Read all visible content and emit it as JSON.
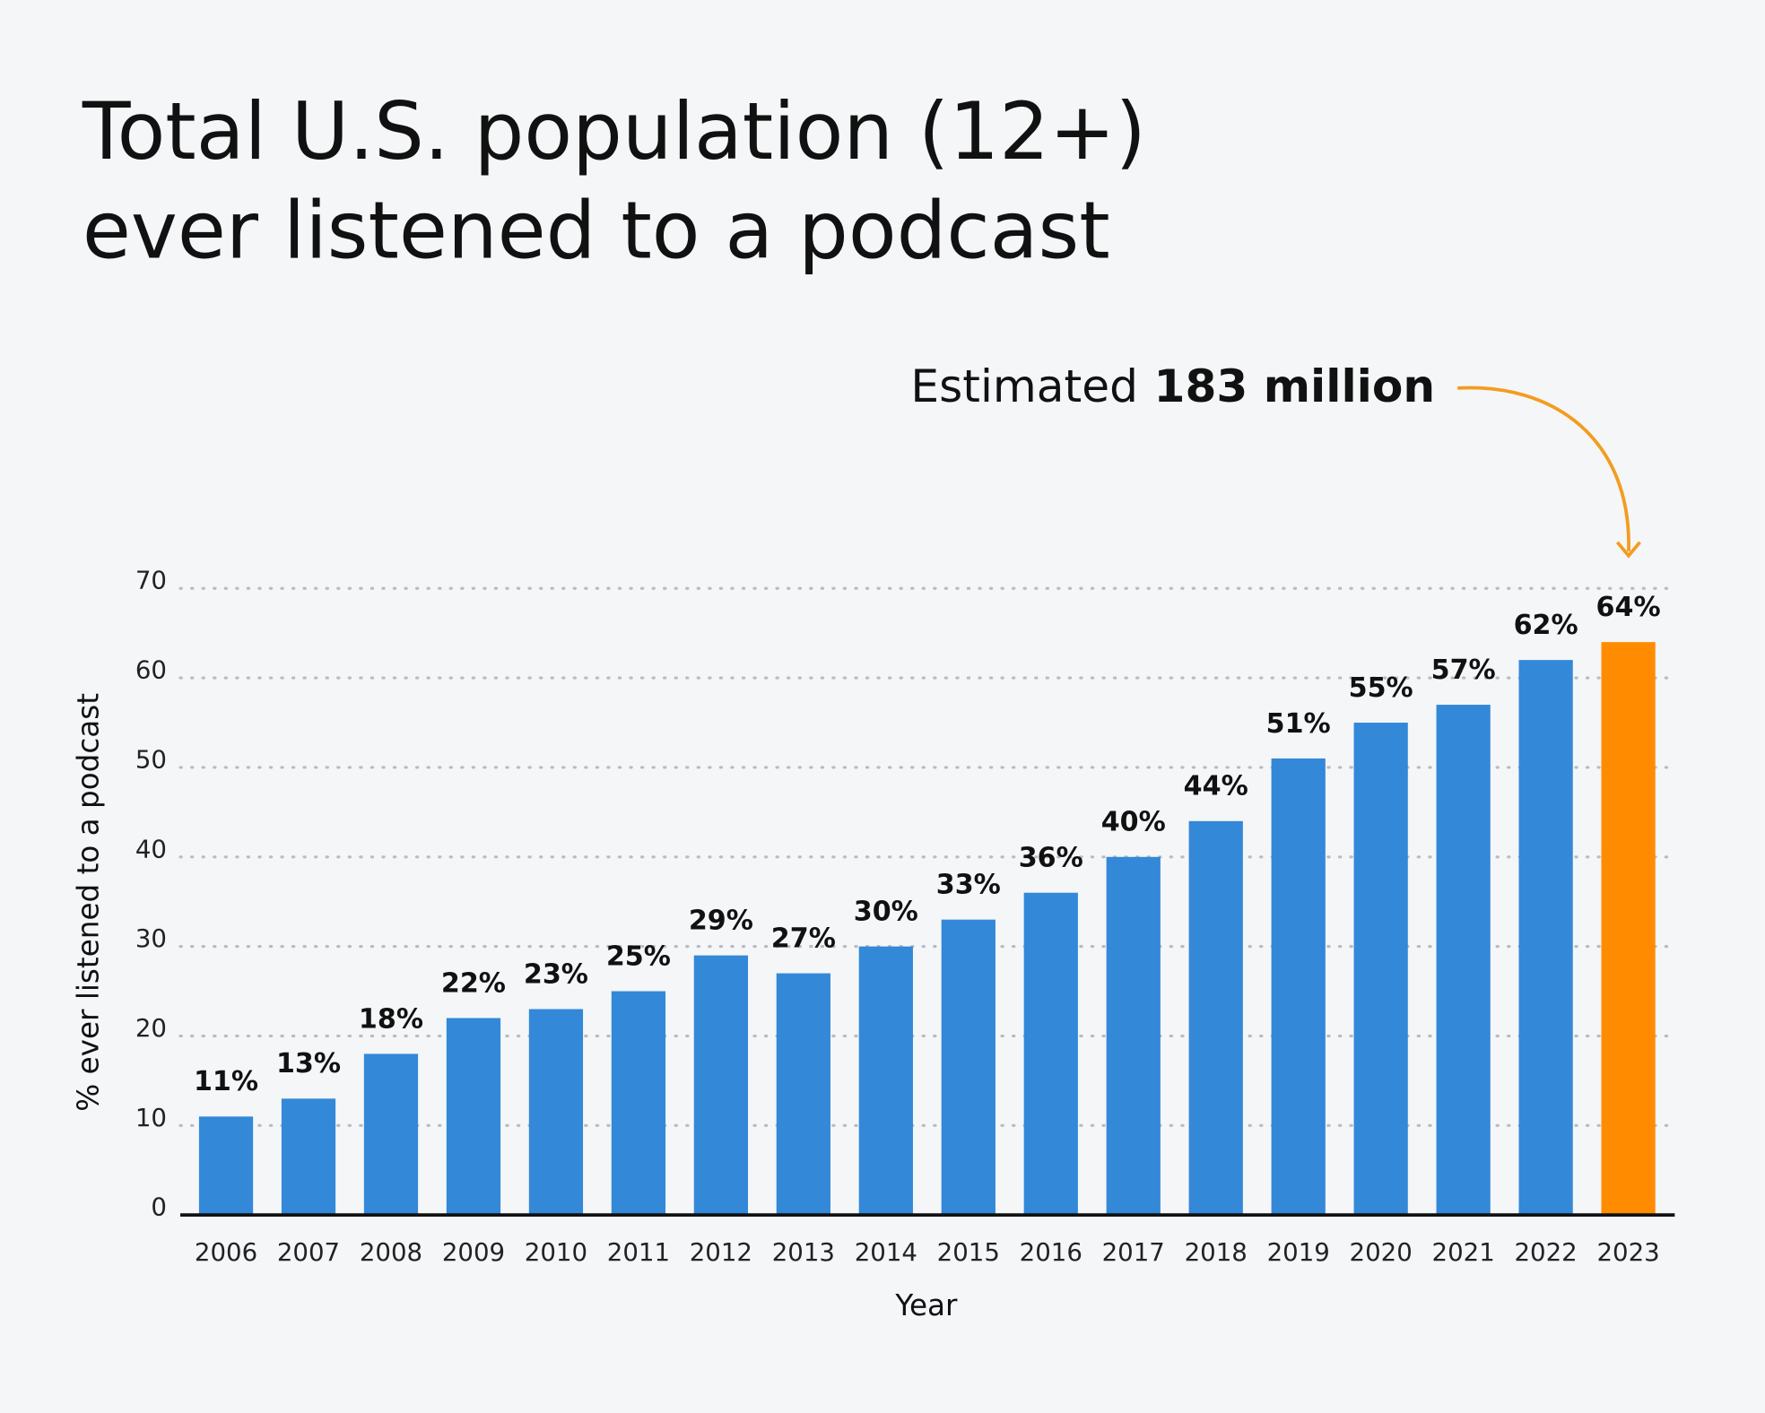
{
  "chart_data": {
    "type": "bar",
    "title": [
      "Total U.S. population (12+)",
      "ever listened to a podcast"
    ],
    "annotation": {
      "text": "Estimated",
      "emphasis": "183 million"
    },
    "x_label": "Year",
    "y_label": "% ever listened to a podcast",
    "categories": [
      "2006",
      "2007",
      "2008",
      "2009",
      "2010",
      "2011",
      "2012",
      "2013",
      "2014",
      "2015",
      "2016",
      "2017",
      "2018",
      "2019",
      "2020",
      "2021",
      "2022",
      "2023"
    ],
    "values": [
      11,
      13,
      18,
      22,
      23,
      25,
      29,
      27,
      30,
      33,
      36,
      40,
      44,
      51,
      55,
      57,
      62,
      64
    ],
    "value_labels": [
      "11%",
      "13%",
      "18%",
      "22%",
      "23%",
      "25%",
      "29%",
      "27%",
      "30%",
      "33%",
      "36%",
      "40%",
      "44%",
      "51%",
      "55%",
      "57%",
      "62%",
      "64%"
    ],
    "colors": [
      "#3388d8",
      "#3388d8",
      "#3388d8",
      "#3388d8",
      "#3388d8",
      "#3388d8",
      "#3388d8",
      "#3388d8",
      "#3388d8",
      "#3388d8",
      "#3388d8",
      "#3388d8",
      "#3388d8",
      "#3388d8",
      "#3388d8",
      "#3388d8",
      "#3388d8",
      "#ff8c00"
    ],
    "annotation_color": "#f39c1f",
    "ylim": [
      0,
      70
    ],
    "yticks": [
      0,
      10,
      20,
      30,
      40,
      50,
      60,
      70
    ],
    "grid": true
  }
}
